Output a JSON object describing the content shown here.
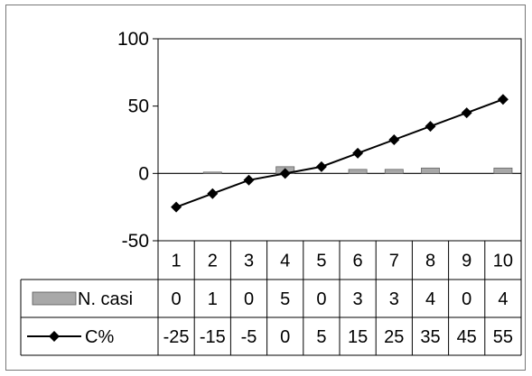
{
  "chart_data": {
    "type": "bar-line",
    "categories": [
      "1",
      "2",
      "3",
      "4",
      "5",
      "6",
      "7",
      "8",
      "9",
      "10"
    ],
    "series": [
      {
        "name": "N. casi",
        "type": "bar",
        "values": [
          0,
          1,
          0,
          5,
          0,
          3,
          3,
          4,
          0,
          4
        ],
        "color": "#a8a8a8"
      },
      {
        "name": "C%",
        "type": "line",
        "marker": "diamond",
        "values": [
          -25,
          -15,
          -5,
          0,
          5,
          15,
          25,
          35,
          45,
          55
        ],
        "color": "#000000"
      }
    ],
    "ylim": [
      -50,
      100
    ],
    "yticks": [
      "100",
      "50",
      "0",
      "-50"
    ],
    "ytick_values": [
      100,
      50,
      0,
      -50
    ],
    "table_rows": [
      {
        "label": "N. casi",
        "values": [
          "0",
          "1",
          "0",
          "5",
          "0",
          "3",
          "3",
          "4",
          "0",
          "4"
        ]
      },
      {
        "label": "C%",
        "values": [
          "-25",
          "-15",
          "-5",
          "0",
          "5",
          "15",
          "25",
          "35",
          "45",
          "55"
        ]
      }
    ],
    "grid": false,
    "legend": "in-data-table"
  }
}
